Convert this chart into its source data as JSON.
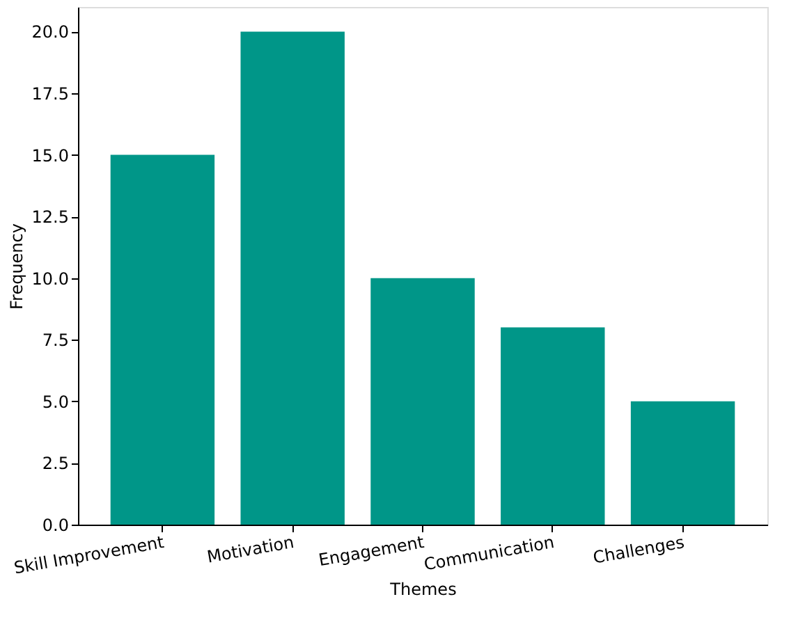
{
  "chart_data": {
    "type": "bar",
    "xlabel": "Themes",
    "ylabel": "Frequency",
    "categories": [
      "Skill Improvement",
      "Motivation",
      "Engagement",
      "Communication",
      "Challenges"
    ],
    "values": [
      15,
      20,
      10,
      8,
      5
    ],
    "color": "#009688",
    "ylim": [
      0,
      21
    ],
    "yticks": [
      {
        "value": 0,
        "label": "0.0"
      },
      {
        "value": 2.5,
        "label": "2.5"
      },
      {
        "value": 5,
        "label": "5.0"
      },
      {
        "value": 7.5,
        "label": "7.5"
      },
      {
        "value": 10,
        "label": "10.0"
      },
      {
        "value": 12.5,
        "label": "12.5"
      },
      {
        "value": 15,
        "label": "15.0"
      },
      {
        "value": 17.5,
        "label": "17.5"
      },
      {
        "value": 20,
        "label": "20.0"
      }
    ],
    "grid": false
  }
}
